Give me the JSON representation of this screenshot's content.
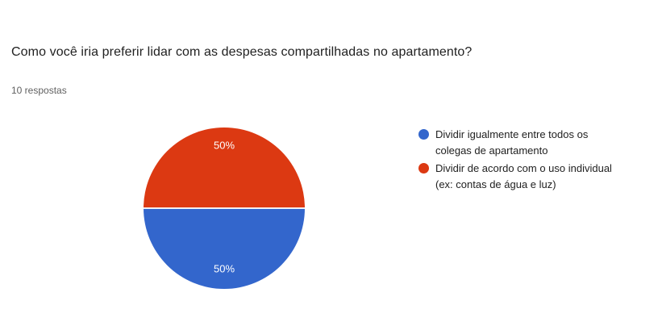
{
  "header": {
    "title": "Como você iria preferir lidar com as despesas compartilhadas no apartamento?",
    "responses_count": "10 respostas"
  },
  "chart_data": {
    "type": "pie",
    "title": "Como você iria preferir lidar com as despesas compartilhadas no apartamento?",
    "responses_total": 10,
    "categories": [
      "Dividir igualmente entre todos os colegas de apartamento",
      "Dividir de acordo com o uso individual (ex: contas de água e luz)"
    ],
    "values": [
      5,
      5
    ],
    "percent_labels": [
      "50%",
      "50%"
    ],
    "colors": [
      "#3366CC",
      "#DC3912"
    ],
    "legend_position": "right",
    "legend_labels": [
      "Dividir igualmente entre todos os\ncolegas de apartamento",
      "Dividir de acordo com o uso individual\n(ex: contas de água e luz)"
    ],
    "start_angle_deg": 90
  }
}
